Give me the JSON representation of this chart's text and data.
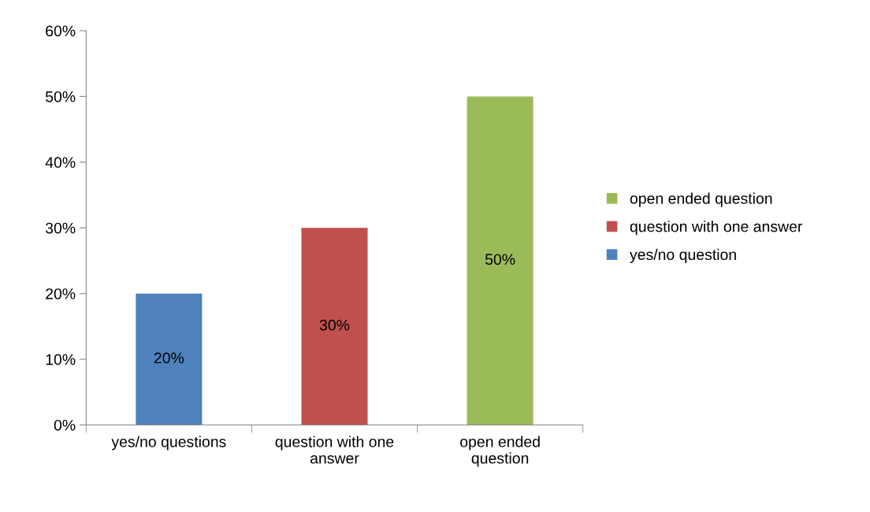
{
  "chart_data": {
    "type": "bar",
    "categories": [
      "yes/no questions",
      "question with one answer",
      "open ended question"
    ],
    "series": [
      {
        "name": "yes/no question",
        "color": "#4f81bd",
        "values": [
          20,
          null,
          null
        ],
        "value_labels": [
          "20%",
          null,
          null
        ]
      },
      {
        "name": "question with one answer",
        "color": "#c0504d",
        "values": [
          null,
          30,
          null
        ],
        "value_labels": [
          null,
          "30%",
          null
        ]
      },
      {
        "name": "open ended question",
        "color": "#9bbb59",
        "values": [
          null,
          null,
          50
        ],
        "value_labels": [
          null,
          null,
          "50%"
        ]
      }
    ],
    "ylim": [
      0,
      60
    ],
    "yticks": [
      {
        "value": 0,
        "label": "0%"
      },
      {
        "value": 10,
        "label": "10%"
      },
      {
        "value": 20,
        "label": "20%"
      },
      {
        "value": 30,
        "label": "30%"
      },
      {
        "value": 40,
        "label": "40%"
      },
      {
        "value": 50,
        "label": "50%"
      },
      {
        "value": 60,
        "label": "60%"
      }
    ],
    "grid": false,
    "legend": "right"
  }
}
